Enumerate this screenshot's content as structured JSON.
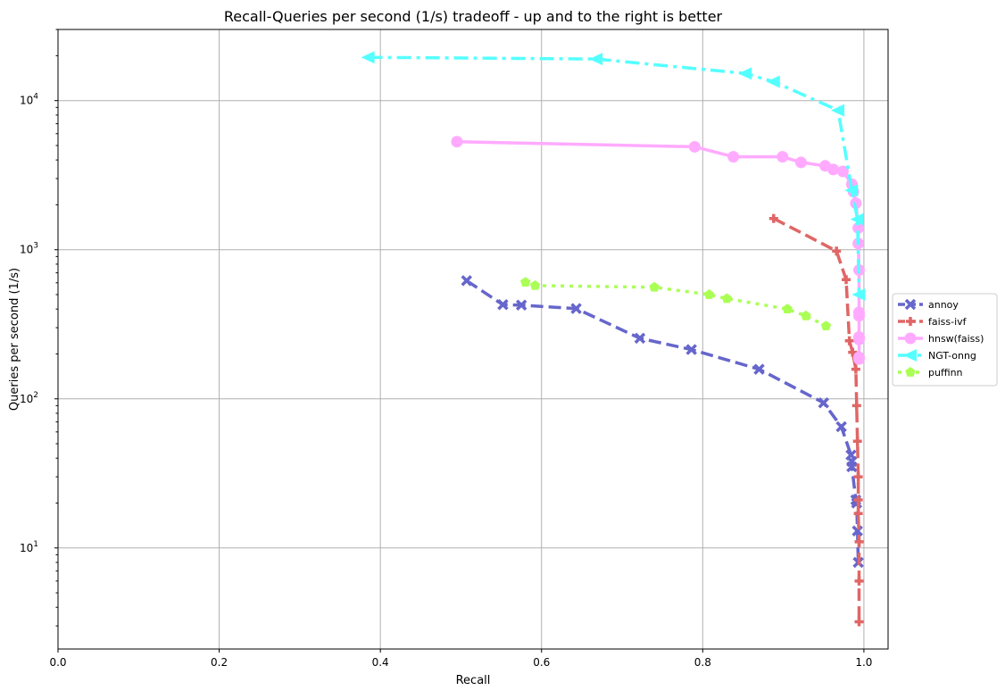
{
  "chart_data": {
    "type": "line",
    "title": "Recall-Queries per second (1/s) tradeoff - up and to the right is better",
    "xlabel": "Recall",
    "ylabel": "Queries per second (1/s)",
    "xlim": [
      0.0,
      1.03
    ],
    "ylim": [
      2.1,
      30000
    ],
    "xscale": "linear",
    "yscale": "log",
    "x_ticks": [
      0.0,
      0.2,
      0.4,
      0.6,
      0.8,
      1.0
    ],
    "x_tick_labels": [
      "0.0",
      "0.2",
      "0.4",
      "0.6",
      "0.8",
      "1.0"
    ],
    "y_ticks": [
      10,
      100,
      1000,
      10000
    ],
    "y_tick_labels": [
      {
        "base": "10",
        "exp": "1"
      },
      {
        "base": "10",
        "exp": "2"
      },
      {
        "base": "10",
        "exp": "3"
      },
      {
        "base": "10",
        "exp": "4"
      }
    ],
    "grid": true,
    "legend_position": "right",
    "series": [
      {
        "name": "annoy",
        "color": "#6666cc",
        "dash": "dashed",
        "marker": "x",
        "x": [
          0.507,
          0.552,
          0.575,
          0.643,
          0.722,
          0.786,
          0.87,
          0.95,
          0.972,
          0.984,
          0.985,
          0.985,
          0.99,
          0.991,
          0.992,
          0.993
        ],
        "y": [
          620,
          428,
          425,
          403,
          255,
          214,
          158,
          94,
          65,
          42,
          38,
          35,
          21,
          20,
          13,
          8
        ]
      },
      {
        "name": "faiss-ivf",
        "color": "#e06666",
        "dash": "dashed",
        "marker": "plus",
        "x": [
          0.888,
          0.966,
          0.978,
          0.982,
          0.986,
          0.99,
          0.991,
          0.992,
          0.993,
          0.993,
          0.993,
          0.994,
          0.994,
          0.994
        ],
        "y": [
          1620,
          980,
          630,
          245,
          205,
          158,
          90,
          52,
          30,
          21,
          17,
          11,
          6,
          3.2
        ]
      },
      {
        "name": "hnsw(faiss)",
        "color": "#ffaaff",
        "dash": "solid",
        "marker": "circle",
        "x": [
          0.495,
          0.79,
          0.838,
          0.899,
          0.922,
          0.952,
          0.962,
          0.974,
          0.985,
          0.987,
          0.99,
          0.993,
          0.993,
          0.994,
          0.994,
          0.994,
          0.994,
          0.994,
          0.994,
          0.994
        ],
        "y": [
          5300,
          4900,
          4200,
          4200,
          3850,
          3650,
          3450,
          3350,
          2750,
          2450,
          2050,
          1400,
          1100,
          730,
          380,
          360,
          260,
          250,
          190,
          185
        ]
      },
      {
        "name": "NGT-onng",
        "color": "#55ffff",
        "dash": "dashdot",
        "marker": "triangle-left",
        "x": [
          0.385,
          0.668,
          0.853,
          0.888,
          0.968,
          0.985,
          0.992,
          0.994
        ],
        "y": [
          19500,
          19000,
          15200,
          13400,
          8600,
          2500,
          1600,
          500
        ]
      },
      {
        "name": "puffinn",
        "color": "#aaff55",
        "dash": "dotted",
        "marker": "pentagon",
        "x": [
          0.58,
          0.592,
          0.74,
          0.808,
          0.83,
          0.905,
          0.928,
          0.953
        ],
        "y": [
          605,
          575,
          560,
          500,
          470,
          400,
          360,
          308
        ]
      }
    ]
  }
}
